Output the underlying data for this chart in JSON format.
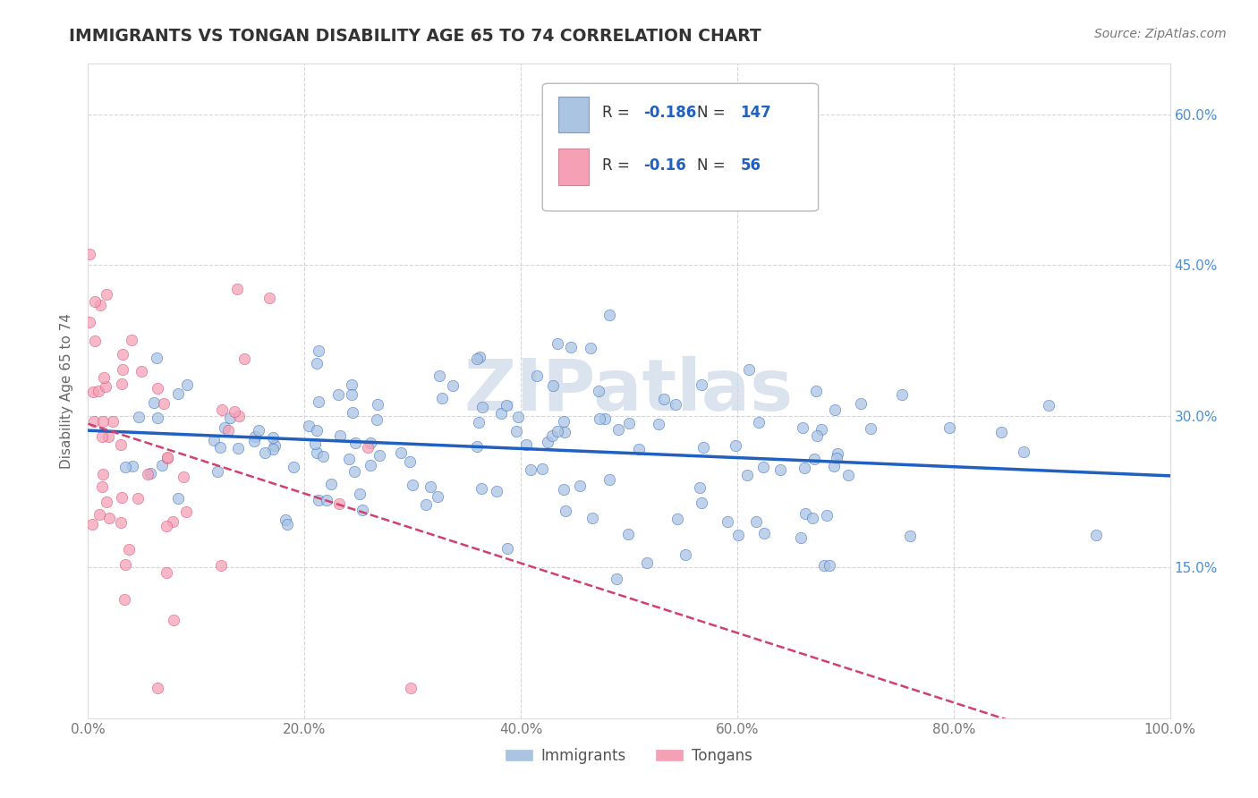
{
  "title": "IMMIGRANTS VS TONGAN DISABILITY AGE 65 TO 74 CORRELATION CHART",
  "source": "Source: ZipAtlas.com",
  "ylabel": "Disability Age 65 to 74",
  "xlim": [
    0.0,
    1.0
  ],
  "ylim": [
    0.0,
    0.65
  ],
  "xticks": [
    0.0,
    0.2,
    0.4,
    0.6,
    0.8,
    1.0
  ],
  "xtick_labels": [
    "0.0%",
    "20.0%",
    "40.0%",
    "60.0%",
    "80.0%",
    "100.0%"
  ],
  "yticks": [
    0.15,
    0.3,
    0.45,
    0.6
  ],
  "ytick_labels": [
    "15.0%",
    "30.0%",
    "45.0%",
    "60.0%"
  ],
  "immigrants_R": -0.186,
  "immigrants_N": 147,
  "tongans_R": -0.16,
  "tongans_N": 56,
  "immigrant_color": "#aac4e2",
  "tongan_color": "#f5a0b5",
  "immigrant_line_color": "#2060c0",
  "tongan_line_color": "#d04070",
  "background_color": "#ffffff",
  "grid_color": "#cccccc",
  "title_color": "#333333",
  "watermark_color": "#ccd8e8",
  "tick_label_color": "#4a90d9",
  "left_tick_color": "#aaaaaa"
}
